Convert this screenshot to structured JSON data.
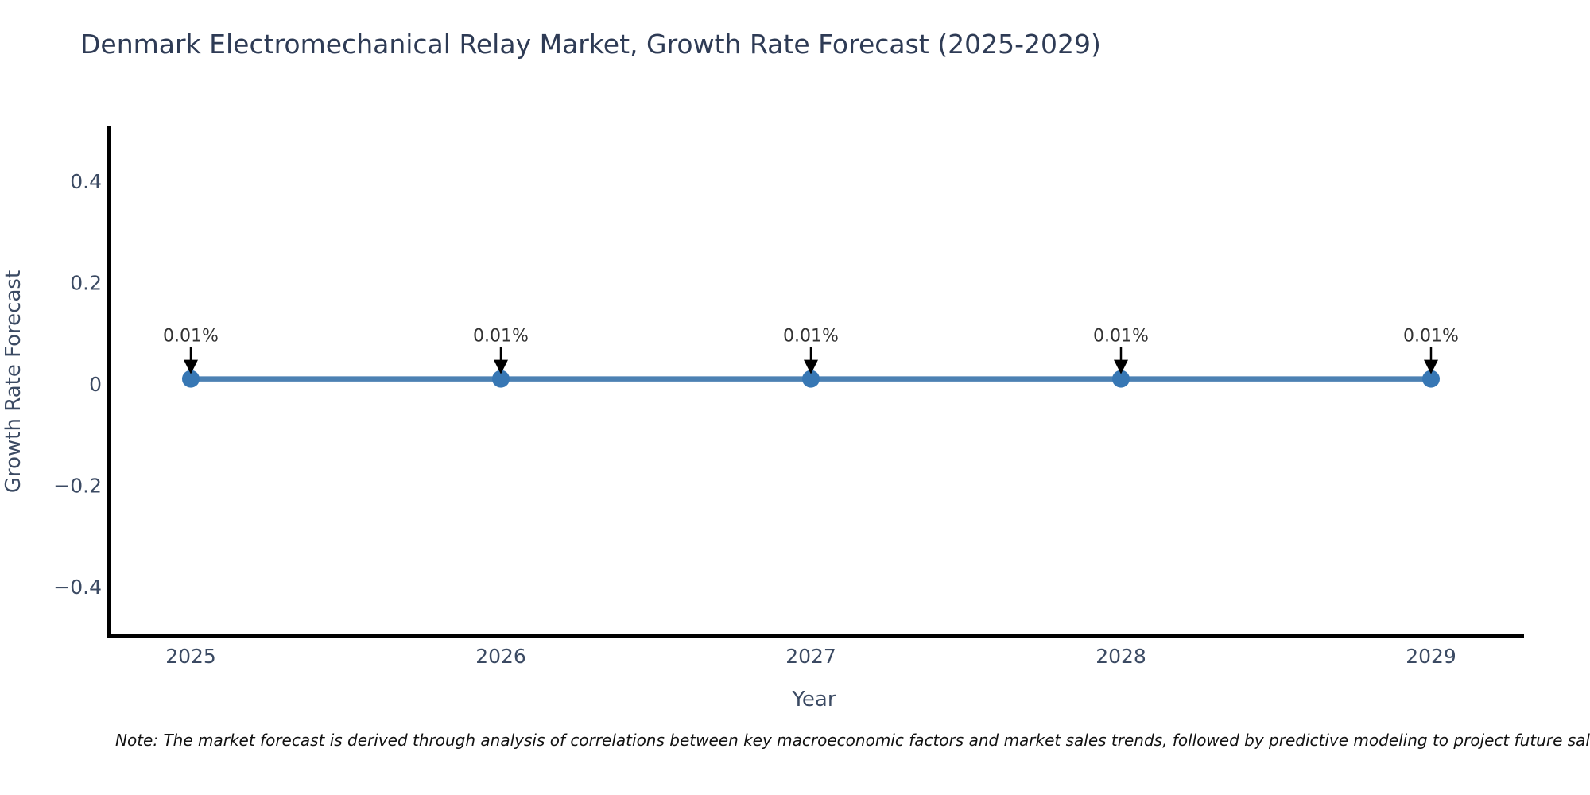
{
  "chart_data": {
    "type": "line",
    "title": "Denmark Electromechanical Relay Market, Growth Rate Forecast (2025-2029)",
    "xlabel": "Year",
    "ylabel": "Growth Rate Forecast",
    "x": [
      2025,
      2026,
      2027,
      2028,
      2029
    ],
    "values": [
      0.01,
      0.01,
      0.01,
      0.01,
      0.01
    ],
    "point_labels": [
      "0.01%",
      "0.01%",
      "0.01%",
      "0.01%",
      "0.01%"
    ],
    "y_ticks": [
      0.4,
      0.2,
      0,
      -0.2,
      -0.4
    ],
    "ylim": [
      -0.49,
      0.51
    ],
    "grid": false,
    "legend": "none",
    "line_color": "#4c81b3",
    "marker_color": "#3777b4",
    "axis_color": "#000000",
    "annotation_arrow_color": "#000000"
  },
  "note": "Note: The market forecast is derived through analysis of correlations between key macroeconomic factors and market sales trends, followed by predictive modeling to project future sales."
}
